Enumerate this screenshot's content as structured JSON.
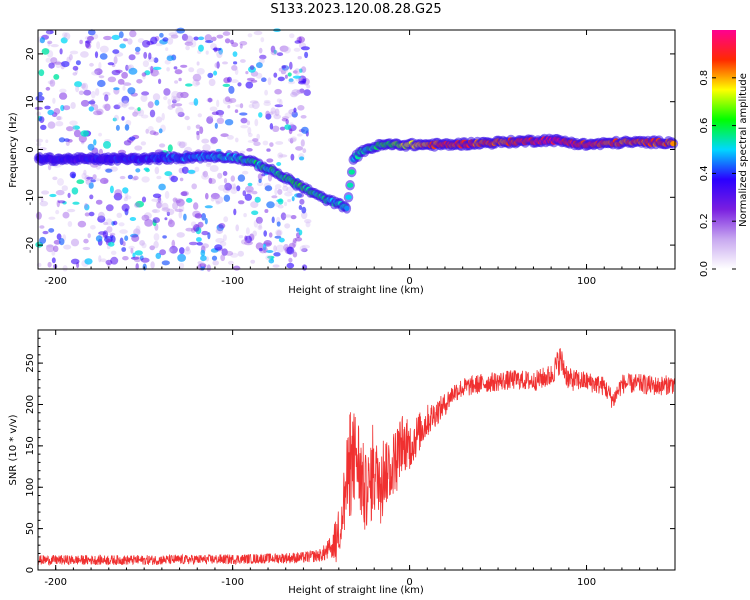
{
  "title": "S133.2023.120.08.28.G25",
  "chart_data": [
    {
      "type": "heatmap",
      "xlabel": "Height of straight line (km)",
      "ylabel": "Frequency (Hz)",
      "xlim": [
        -210,
        150
      ],
      "ylim": [
        -25,
        25
      ],
      "x_ticks": [
        -200,
        -100,
        0,
        100
      ],
      "y_ticks": [
        -20,
        -10,
        0,
        10,
        20
      ],
      "colorbar": {
        "label": "Normalized spectral amplitude",
        "range": [
          0,
          1
        ],
        "ticks": [
          "0.0",
          "0.2",
          "0.4",
          "0.6",
          "0.8"
        ],
        "colors": [
          "#ffffff",
          "#c8a8f0",
          "#7a1fe0",
          "#2a00ff",
          "#00d8ff",
          "#00ff00",
          "#ffff00",
          "#ff2a00",
          "#ff0090"
        ]
      },
      "ridge": {
        "x": [
          -210,
          -180,
          -150,
          -120,
          -100,
          -90,
          -80,
          -70,
          -60,
          -50,
          -40,
          -35,
          -32,
          -25,
          -15,
          -5,
          0,
          20,
          50,
          80,
          100,
          120,
          150
        ],
        "y": [
          -2,
          -2,
          -2,
          -1.5,
          -1.5,
          -2.5,
          -4,
          -6,
          -8,
          -10,
          -11.5,
          -12,
          -2,
          0,
          1,
          1,
          1,
          1,
          1.5,
          2,
          1,
          1.5,
          1.5
        ],
        "amplitude": [
          0.35,
          0.35,
          0.4,
          0.45,
          0.5,
          0.55,
          0.55,
          0.6,
          0.6,
          0.55,
          0.5,
          0.5,
          0.5,
          0.55,
          0.6,
          0.7,
          0.75,
          0.9,
          0.85,
          0.95,
          0.9,
          0.85,
          0.85
        ]
      },
      "noise_region_x": [
        -210,
        -65
      ]
    },
    {
      "type": "line",
      "xlabel": "Height of straight line (km)",
      "ylabel": "SNR (10 * v/v)",
      "xlim": [
        -210,
        150
      ],
      "ylim": [
        0,
        290
      ],
      "x_ticks": [
        -200,
        -100,
        0,
        100
      ],
      "y_ticks": [
        0,
        50,
        100,
        150,
        200,
        250
      ],
      "color": "#f03030",
      "series": [
        {
          "x": [
            -210,
            -150,
            -100,
            -80,
            -60,
            -50,
            -45,
            -40,
            -35,
            -30,
            -25,
            -20,
            -15,
            -10,
            -5,
            0,
            5,
            10,
            15,
            20,
            25,
            30,
            40,
            50,
            60,
            70,
            80,
            85,
            90,
            100,
            110,
            115,
            120,
            130,
            140,
            150
          ],
          "y": [
            12,
            12,
            13,
            14,
            15,
            18,
            25,
            45,
            110,
            140,
            90,
            110,
            120,
            125,
            150,
            150,
            165,
            180,
            190,
            200,
            215,
            220,
            225,
            228,
            230,
            228,
            235,
            255,
            230,
            228,
            222,
            205,
            225,
            225,
            222,
            225
          ],
          "noise_amp": [
            6,
            6,
            6,
            6,
            7,
            8,
            15,
            30,
            55,
            60,
            50,
            45,
            45,
            40,
            35,
            30,
            25,
            20,
            16,
            14,
            12,
            12,
            12,
            12,
            12,
            12,
            14,
            18,
            14,
            12,
            12,
            12,
            12,
            12,
            12,
            12
          ]
        }
      ]
    }
  ]
}
